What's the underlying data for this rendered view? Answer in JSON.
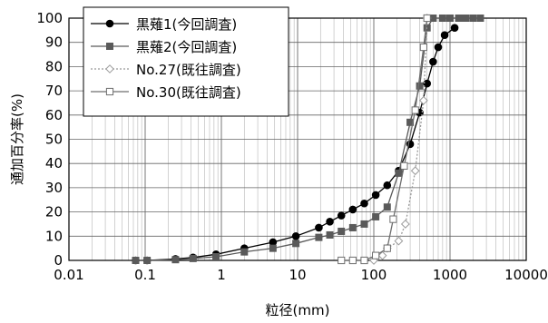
{
  "chart_data": {
    "type": "line",
    "xscale": "log",
    "xlim": [
      0.01,
      10000
    ],
    "ylim": [
      0,
      100
    ],
    "xlabel": "粒径(mm)",
    "ylabel": "通加百分率(%)",
    "x_ticks": [
      "0.01",
      "0.1",
      "1",
      "10",
      "100",
      "1000",
      "10000"
    ],
    "y_ticks": [
      "0",
      "10",
      "20",
      "30",
      "40",
      "50",
      "60",
      "70",
      "80",
      "90",
      "100"
    ],
    "grid": true,
    "legend_position": "top-left",
    "series": [
      {
        "name": "黒薙1(今回調査)",
        "color": "#000000",
        "marker": "filled-circle",
        "line": "solid",
        "points": [
          [
            0.075,
            0
          ],
          [
            0.106,
            0
          ],
          [
            0.25,
            0.6
          ],
          [
            0.425,
            1.2
          ],
          [
            0.85,
            2.5
          ],
          [
            2,
            5
          ],
          [
            4.75,
            7.5
          ],
          [
            9.5,
            10
          ],
          [
            19,
            13.5
          ],
          [
            26.5,
            16
          ],
          [
            37.5,
            18.5
          ],
          [
            53,
            21
          ],
          [
            75,
            23.5
          ],
          [
            106,
            27
          ],
          [
            150,
            31
          ],
          [
            212,
            37
          ],
          [
            300,
            48
          ],
          [
            400,
            61
          ],
          [
            500,
            73
          ],
          [
            600,
            82
          ],
          [
            700,
            88
          ],
          [
            850,
            93
          ],
          [
            1150,
            96
          ]
        ]
      },
      {
        "name": "黒薙2(今回調査)",
        "color": "#5a5a5a",
        "marker": "filled-square",
        "line": "solid",
        "points": [
          [
            0.075,
            0
          ],
          [
            0.106,
            0
          ],
          [
            0.25,
            0.3
          ],
          [
            0.425,
            0.8
          ],
          [
            0.85,
            1.5
          ],
          [
            2,
            3.5
          ],
          [
            4.75,
            5
          ],
          [
            9.5,
            7
          ],
          [
            19,
            9.5
          ],
          [
            26.5,
            10.5
          ],
          [
            37.5,
            12
          ],
          [
            53,
            13.5
          ],
          [
            75,
            15
          ],
          [
            106,
            18
          ],
          [
            150,
            22
          ],
          [
            212,
            36
          ],
          [
            300,
            57
          ],
          [
            400,
            72
          ],
          [
            500,
            96
          ],
          [
            600,
            100
          ],
          [
            800,
            100
          ],
          [
            1000,
            100
          ],
          [
            1300,
            100
          ],
          [
            1600,
            100
          ],
          [
            2000,
            100
          ],
          [
            2500,
            100
          ]
        ]
      },
      {
        "name": "No.27(既往調査)",
        "color": "#9a9a9a",
        "marker": "open-diamond",
        "line": "dotted",
        "points": [
          [
            100,
            0
          ],
          [
            130,
            2
          ],
          [
            150,
            5
          ],
          [
            212,
            8
          ],
          [
            260,
            15
          ],
          [
            350,
            37
          ],
          [
            450,
            66
          ],
          [
            500,
            100
          ]
        ]
      },
      {
        "name": "No.30(既往調査)",
        "color": "#6e6e6e",
        "marker": "open-square",
        "line": "solid",
        "points": [
          [
            37.5,
            0
          ],
          [
            53,
            0
          ],
          [
            75,
            0
          ],
          [
            106,
            2
          ],
          [
            150,
            5
          ],
          [
            180,
            17
          ],
          [
            250,
            39
          ],
          [
            350,
            62
          ],
          [
            450,
            88
          ],
          [
            500,
            100
          ]
        ]
      }
    ]
  }
}
